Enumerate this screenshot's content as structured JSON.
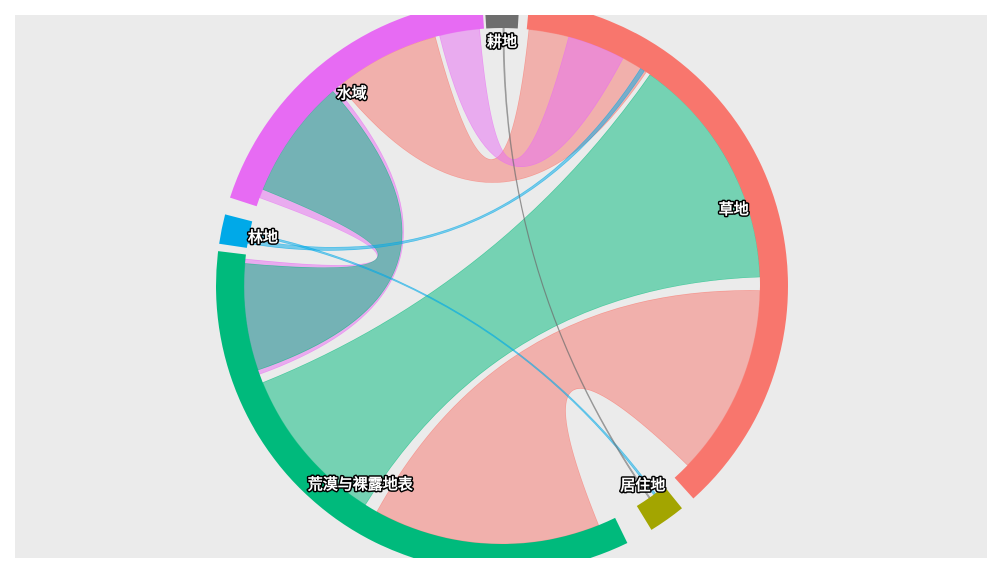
{
  "chart_data": {
    "type": "chord",
    "title": "",
    "groups": [
      {
        "name": "耕地",
        "color": "#6e6e6e",
        "start_deg": -3.5,
        "end_deg": 3.5
      },
      {
        "name": "草地",
        "color": "#f8766d",
        "start_deg": 5.5,
        "end_deg": 138.0
      },
      {
        "name": "居住地",
        "color": "#a3a500",
        "start_deg": 141.0,
        "end_deg": 148.5
      },
      {
        "name": "荒漠与裸露地表",
        "color": "#00ba7c",
        "start_deg": 154.0,
        "end_deg": 277.0
      },
      {
        "name": "林地",
        "color": "#00a9e8",
        "start_deg": 278.5,
        "end_deg": 284.5
      },
      {
        "name": "水域",
        "color": "#e76bf3",
        "start_deg": 288.0,
        "end_deg": 356.0
      }
    ],
    "chords": [
      {
        "from": "荒漠与裸露地表",
        "to": "草地",
        "from_deg": [
          212,
          248
        ],
        "to_deg": [
          35,
          88
        ],
        "color": "#00ba7c"
      },
      {
        "from": "草地",
        "to": "荒漠与裸露地表",
        "from_deg": [
          91,
          134
        ],
        "to_deg": [
          158,
          209
        ],
        "color": "#f8766d"
      },
      {
        "from": "草地",
        "to": "水域",
        "from_deg": [
          6,
          34
        ],
        "to_deg": [
          321,
          345
        ],
        "color": "#f8766d"
      },
      {
        "from": "水域",
        "to": "水域",
        "from_deg": [
          346,
          355
        ],
        "to_deg": [
          15,
          28
        ],
        "color": "#e76bf3"
      },
      {
        "from": "水域",
        "to": "荒漠与裸露地表",
        "from_deg": [
          290,
          320
        ],
        "to_deg": [
          250,
          276
        ],
        "color": "#e76bf3"
      },
      {
        "from": "荒漠与裸露地表",
        "to": "荒漠与裸露地表",
        "from_deg": [
          251,
          275
        ],
        "to_deg": [
          292,
          319
        ],
        "color": "#00ba7c"
      },
      {
        "from": "林地",
        "to": "草地",
        "from_deg": [
          279.5,
          280.5
        ],
        "to_deg": [
          32.5,
          33.5
        ],
        "color": "#00a9e8"
      },
      {
        "from": "林地",
        "to": "居住地",
        "from_deg": [
          281.5,
          282.0
        ],
        "to_deg": [
          143.5,
          144.0
        ],
        "color": "#00a9e8"
      },
      {
        "from": "耕地",
        "to": "居住地",
        "from_deg": [
          0.2,
          0.5
        ],
        "to_deg": [
          145.0,
          145.3
        ],
        "color": "#6e6e6e"
      }
    ]
  }
}
